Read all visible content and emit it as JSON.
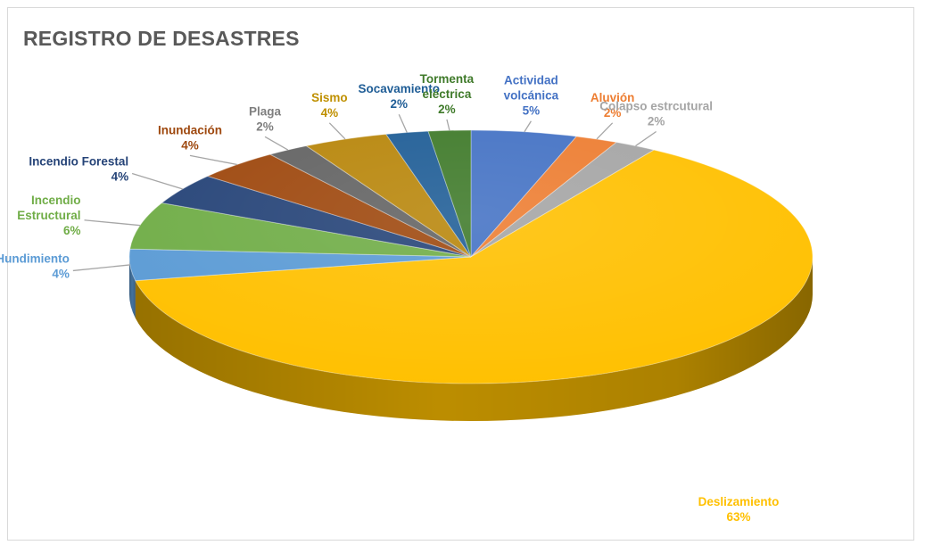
{
  "chart_data": {
    "type": "pie",
    "title": "REGISTRO DE DESASTRES",
    "slices": [
      {
        "name": "Actividad volcánica",
        "label_lines": [
          "Actividad",
          "volcánica"
        ],
        "value": 5,
        "pct_label": "5%",
        "color": "#4472c4",
        "label_color": "#4472c4"
      },
      {
        "name": "Aluvión",
        "label_lines": [
          "Aluvión"
        ],
        "value": 2,
        "pct_label": "2%",
        "color": "#ed7d31",
        "label_color": "#ed7d31"
      },
      {
        "name": "Colapso estrcutural",
        "label_lines": [
          "Colapso estrcutural"
        ],
        "value": 2,
        "pct_label": "2%",
        "color": "#a5a5a5",
        "label_color": "#a5a5a5"
      },
      {
        "name": "Deslizamiento",
        "label_lines": [
          "Deslizamiento"
        ],
        "value": 63,
        "pct_label": "63%",
        "color": "#ffc000",
        "label_color": "#ffc000"
      },
      {
        "name": "Hundimiento",
        "label_lines": [
          "Hundimiento"
        ],
        "value": 4,
        "pct_label": "4%",
        "color": "#5b9bd5",
        "label_color": "#5b9bd5"
      },
      {
        "name": "Incendio Estructural",
        "label_lines": [
          "Incendio",
          "Estructural"
        ],
        "value": 6,
        "pct_label": "6%",
        "color": "#70ad47",
        "label_color": "#70ad47"
      },
      {
        "name": "Incendio Forestal",
        "label_lines": [
          "Incendio Forestal"
        ],
        "value": 4,
        "pct_label": "4%",
        "color": "#264478",
        "label_color": "#264478"
      },
      {
        "name": "Inundación",
        "label_lines": [
          "Inundación"
        ],
        "value": 4,
        "pct_label": "4%",
        "color": "#9e480e",
        "label_color": "#9e480e"
      },
      {
        "name": "Plaga",
        "label_lines": [
          "Plaga"
        ],
        "value": 2,
        "pct_label": "2%",
        "color": "#636363",
        "label_color": "#7f7f7f"
      },
      {
        "name": "Sismo",
        "label_lines": [
          "Sismo"
        ],
        "value": 4,
        "pct_label": "4%",
        "color": "#b8860b",
        "label_color": "#bf9000"
      },
      {
        "name": "Socavamiento",
        "label_lines": [
          "Socavamiento"
        ],
        "value": 2,
        "pct_label": "2%",
        "color": "#1f5d96",
        "label_color": "#1f5d96"
      },
      {
        "name": "Tormenta eléctrica",
        "label_lines": [
          "Tormenta",
          "eléctrica"
        ],
        "value": 2,
        "pct_label": "2%",
        "color": "#3f7a2a",
        "label_color": "#3f7a2a"
      }
    ],
    "legend": "none",
    "data_labels": "category and percentage"
  }
}
